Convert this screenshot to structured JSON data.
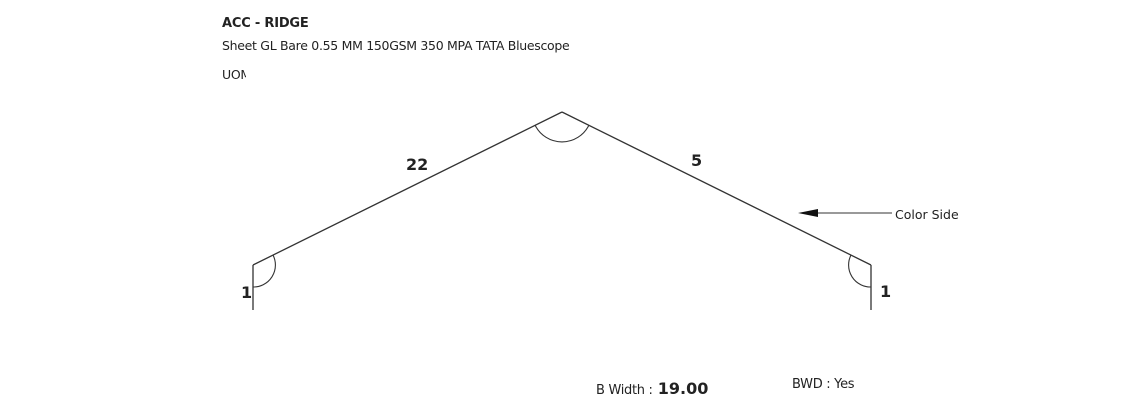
{
  "header": {
    "title": "ACC - RIDGE",
    "material": "Sheet GL Bare 0.55 MM 150GSM 350 MPA TATA Bluescope",
    "uom_label": "UOM"
  },
  "drawing": {
    "segments": [
      {
        "name": "left-return",
        "length": "1"
      },
      {
        "name": "left-slope",
        "length": "22"
      },
      {
        "name": "right-slope",
        "length": "5"
      },
      {
        "name": "right-return",
        "length": "1"
      }
    ],
    "color_side_label": "Color Side"
  },
  "footer": {
    "b_width_label": "B Width :",
    "b_width_value": "19.00",
    "bwd_text": "BWD : Yes"
  },
  "colors": {
    "line": "#333333",
    "text": "#222222",
    "background": "#ffffff"
  },
  "icons": {
    "color_side_arrow": "arrow-left-icon"
  }
}
